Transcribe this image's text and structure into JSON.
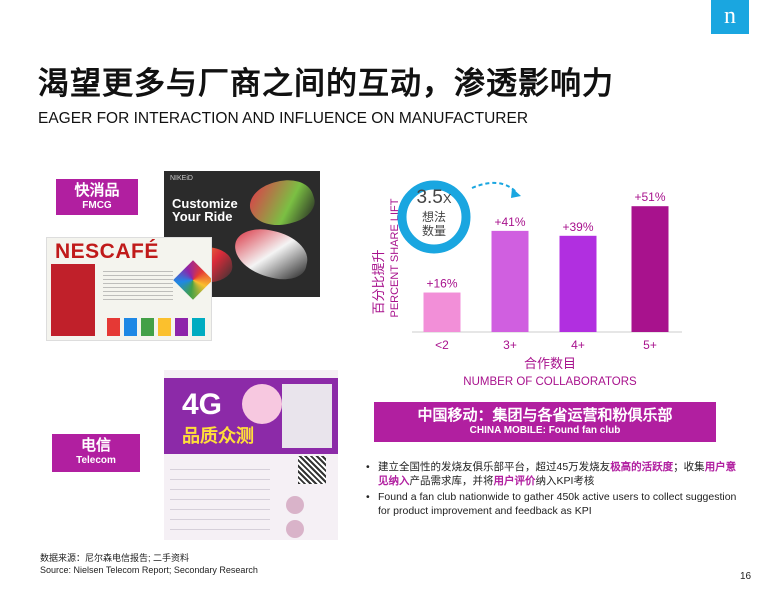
{
  "logo": "n",
  "title_cn": "渴望更多与厂商之间的互动，渗透影响力",
  "title_en": "EAGER FOR INTERACTION AND INFLUENCE ON MANUFACTURER",
  "tags": {
    "fmcg": {
      "cn": "快消品",
      "en": "FMCG"
    },
    "telecom": {
      "cn": "电信",
      "en": "Telecom"
    }
  },
  "images": {
    "nike": {
      "header": "NIKEiD",
      "line1": "Customize",
      "line2": "Your Ride"
    },
    "nescafe": {
      "brand": "NESCAFÉ"
    },
    "telecom": {
      "line1": "4G",
      "line2": "品质众测"
    }
  },
  "circle": {
    "value": "3.5",
    "unit": "X",
    "line1": "想法",
    "line2": "数量"
  },
  "chart_data": {
    "type": "bar",
    "categories": [
      "<2",
      "3+",
      "4+",
      "5+"
    ],
    "values": [
      16,
      41,
      39,
      51
    ],
    "data_labels": [
      "+16%",
      "+41%",
      "+39%",
      "+51%"
    ],
    "ylabel_cn": "百分比提升",
    "ylabel_en": "PERCENT SHARE LIFT",
    "xlabel_cn": "合作数目",
    "xlabel_en": "NUMBER OF COLLABORATORS",
    "ylim": [
      0,
      60
    ],
    "colors": [
      "#f28fd8",
      "#d05fe0",
      "#b12fe0",
      "#a8128d"
    ]
  },
  "info_box": {
    "cn": "中国移动：集团与各省运营和粉俱乐部",
    "en": "CHINA MOBILE: Found fan club"
  },
  "bullets": [
    {
      "p1": "建立全国性的发烧友俱乐部平台，超过45万发烧友",
      "h1": "极高的活跃度",
      "p2": "；收集",
      "h2": "用户意见纳入",
      "p3": "产品需求库，并将",
      "h3": "用户评价",
      "p4": "纳入KPI考核"
    },
    {
      "text": "Found a fan club nationwide to gather 450k active users to collect suggestion for product improvement and feedback as KPI"
    }
  ],
  "source_cn": "数据来源：尼尔森电信报告; 二手资料",
  "source_en": "Source: Nielsen Telecom Report; Secondary Research",
  "page_number": "16"
}
